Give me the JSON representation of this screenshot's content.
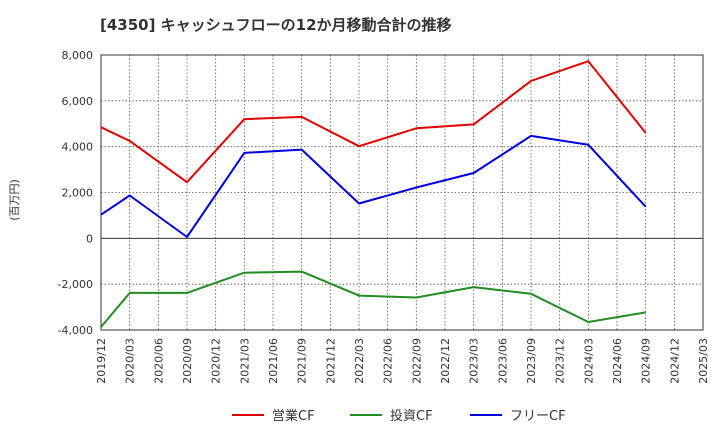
{
  "chart_data": {
    "type": "line",
    "title": "[4350]  キャッシュフローの12か月移動合計の推移",
    "ylabel": "(百万円)",
    "xlabel": "",
    "ylim": [
      -4000,
      8000
    ],
    "yticks": [
      8000,
      6000,
      4000,
      2000,
      0,
      -2000,
      -4000
    ],
    "ytick_labels": [
      "8,000",
      "6,000",
      "4,000",
      "2,000",
      "0",
      "-2,000",
      "-4,000"
    ],
    "categories": [
      "2019/12",
      "2020/03",
      "2020/06",
      "2020/09",
      "2020/12",
      "2021/03",
      "2021/06",
      "2021/09",
      "2021/12",
      "2022/03",
      "2022/06",
      "2022/09",
      "2022/12",
      "2023/03",
      "2023/06",
      "2023/09",
      "2023/12",
      "2024/03",
      "2024/06",
      "2024/09",
      "2024/12",
      "2025/03"
    ],
    "grid": true,
    "legend_position": "bottom",
    "series": [
      {
        "name": "営業CF",
        "color": "#e00000",
        "points": [
          [
            "2019/12",
            4850
          ],
          [
            "2020/03",
            4250
          ],
          [
            "2020/09",
            2450
          ],
          [
            "2021/03",
            5200
          ],
          [
            "2021/09",
            5300
          ],
          [
            "2022/03",
            4020
          ],
          [
            "2022/09",
            4800
          ],
          [
            "2023/03",
            4970
          ],
          [
            "2023/09",
            6870
          ],
          [
            "2024/03",
            7730
          ],
          [
            "2024/09",
            4600
          ]
        ]
      },
      {
        "name": "投資CF",
        "color": "#228b22",
        "points": [
          [
            "2019/12",
            -3870
          ],
          [
            "2020/03",
            -2380
          ],
          [
            "2020/09",
            -2380
          ],
          [
            "2021/03",
            -1500
          ],
          [
            "2021/09",
            -1450
          ],
          [
            "2022/03",
            -2500
          ],
          [
            "2022/09",
            -2580
          ],
          [
            "2023/03",
            -2130
          ],
          [
            "2023/09",
            -2420
          ],
          [
            "2024/03",
            -3650
          ],
          [
            "2024/09",
            -3230
          ]
        ]
      },
      {
        "name": "フリーCF",
        "color": "#0000dd",
        "points": [
          [
            "2019/12",
            1030
          ],
          [
            "2020/03",
            1870
          ],
          [
            "2020/09",
            60
          ],
          [
            "2021/03",
            3730
          ],
          [
            "2021/09",
            3870
          ],
          [
            "2022/03",
            1520
          ],
          [
            "2022/09",
            2220
          ],
          [
            "2023/03",
            2850
          ],
          [
            "2023/09",
            4470
          ],
          [
            "2024/03",
            4080
          ],
          [
            "2024/09",
            1380
          ]
        ]
      }
    ]
  }
}
